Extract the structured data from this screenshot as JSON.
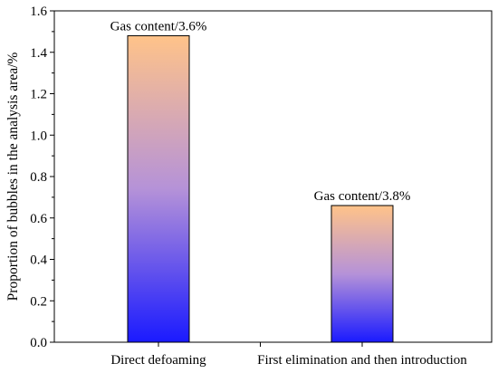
{
  "chart_data": {
    "type": "bar",
    "categories": [
      "Direct defoaming",
      "First elimination and then introduction"
    ],
    "values": [
      1.48,
      0.66
    ],
    "annotations": [
      "Gas content/3.6%",
      "Gas content/3.8%"
    ],
    "title": "",
    "xlabel": "",
    "ylabel": "Proportion of bubbles in the analysis area/%",
    "ylim": [
      0,
      1.6
    ],
    "yticks": [
      "0.0",
      "0.2",
      "0.4",
      "0.6",
      "0.8",
      "1.0",
      "1.2",
      "1.4",
      "1.6"
    ],
    "ytick_values": [
      0,
      0.2,
      0.4,
      0.6,
      0.8,
      1.0,
      1.2,
      1.4,
      1.6
    ],
    "grid": false,
    "legend": "none",
    "bar_gradient": {
      "top": "#ffc389",
      "middle": "#b592d8",
      "bottom": "#1a1aff"
    }
  }
}
